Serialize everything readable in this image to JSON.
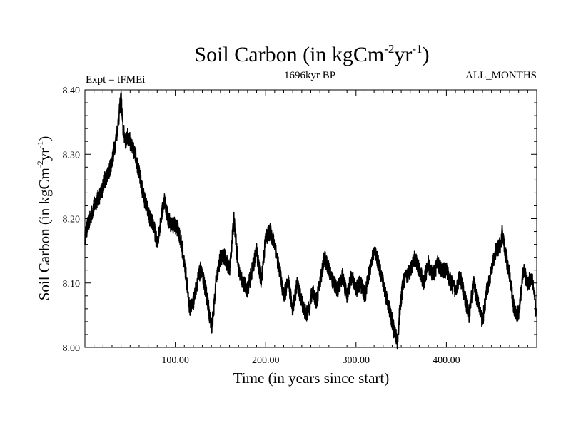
{
  "chart_data": {
    "type": "line",
    "title": "Soil Carbon (in kgCm",
    "title_exp1": "-2",
    "title_mid": "yr",
    "title_exp2": "-1",
    "title_end": ")",
    "subtitle_left": "Expt = tFMEi",
    "subtitle_center": "1696kyr BP",
    "subtitle_right": "ALL_MONTHS",
    "xlabel": "Time (in years since start)",
    "ylabel": "Soil Carbon (in kgCm",
    "ylabel_exp1": "-2",
    "ylabel_mid": "yr",
    "ylabel_exp2": "-1",
    "ylabel_end": ")",
    "xlim": [
      0,
      500
    ],
    "ylim": [
      8.0,
      8.4
    ],
    "x_ticks": [
      100,
      200,
      300,
      400
    ],
    "x_tick_labels": [
      "100.00",
      "200.00",
      "300.00",
      "400.00"
    ],
    "y_ticks": [
      8.0,
      8.1,
      8.2,
      8.3,
      8.4
    ],
    "y_tick_labels": [
      "8.00",
      "8.10",
      "8.20",
      "8.30",
      "8.40"
    ],
    "grid": false,
    "series": [
      {
        "name": "Soil Carbon",
        "color": "#000000",
        "x": [
          0,
          3,
          6,
          10,
          14,
          18,
          22,
          26,
          30,
          34,
          37,
          40,
          42,
          45,
          48,
          52,
          56,
          60,
          64,
          68,
          72,
          76,
          80,
          84,
          88,
          92,
          96,
          100,
          104,
          108,
          112,
          116,
          120,
          124,
          128,
          132,
          136,
          140,
          142,
          145,
          150,
          155,
          160,
          165,
          170,
          175,
          180,
          185,
          190,
          195,
          200,
          205,
          210,
          215,
          220,
          225,
          230,
          235,
          240,
          245,
          248,
          252,
          256,
          260,
          265,
          270,
          275,
          280,
          285,
          290,
          295,
          300,
          305,
          310,
          315,
          320,
          325,
          330,
          335,
          340,
          343,
          346,
          348,
          352,
          356,
          360,
          365,
          370,
          375,
          380,
          385,
          390,
          395,
          400,
          405,
          410,
          415,
          420,
          425,
          430,
          435,
          440,
          445,
          450,
          455,
          460,
          462,
          465,
          470,
          475,
          480,
          485,
          490,
          495,
          499
        ],
        "y": [
          8.17,
          8.19,
          8.2,
          8.22,
          8.23,
          8.24,
          8.26,
          8.27,
          8.29,
          8.32,
          8.35,
          8.39,
          8.34,
          8.32,
          8.33,
          8.31,
          8.3,
          8.27,
          8.24,
          8.22,
          8.2,
          8.19,
          8.16,
          8.2,
          8.23,
          8.2,
          8.19,
          8.19,
          8.18,
          8.15,
          8.11,
          8.06,
          8.07,
          8.1,
          8.12,
          8.1,
          8.07,
          8.03,
          8.05,
          8.1,
          8.14,
          8.14,
          8.12,
          8.2,
          8.12,
          8.1,
          8.09,
          8.12,
          8.15,
          8.1,
          8.17,
          8.18,
          8.16,
          8.12,
          8.08,
          8.1,
          8.06,
          8.1,
          8.07,
          8.05,
          8.06,
          8.09,
          8.07,
          8.1,
          8.14,
          8.12,
          8.1,
          8.09,
          8.11,
          8.08,
          8.11,
          8.09,
          8.1,
          8.08,
          8.12,
          8.15,
          8.13,
          8.1,
          8.07,
          8.04,
          8.02,
          8.01,
          8.05,
          8.1,
          8.11,
          8.12,
          8.14,
          8.12,
          8.1,
          8.13,
          8.11,
          8.13,
          8.12,
          8.12,
          8.1,
          8.09,
          8.11,
          8.08,
          8.05,
          8.1,
          8.07,
          8.04,
          8.09,
          8.12,
          8.15,
          8.16,
          8.18,
          8.15,
          8.11,
          8.06,
          8.05,
          8.12,
          8.1,
          8.11,
          8.06
        ]
      }
    ]
  }
}
